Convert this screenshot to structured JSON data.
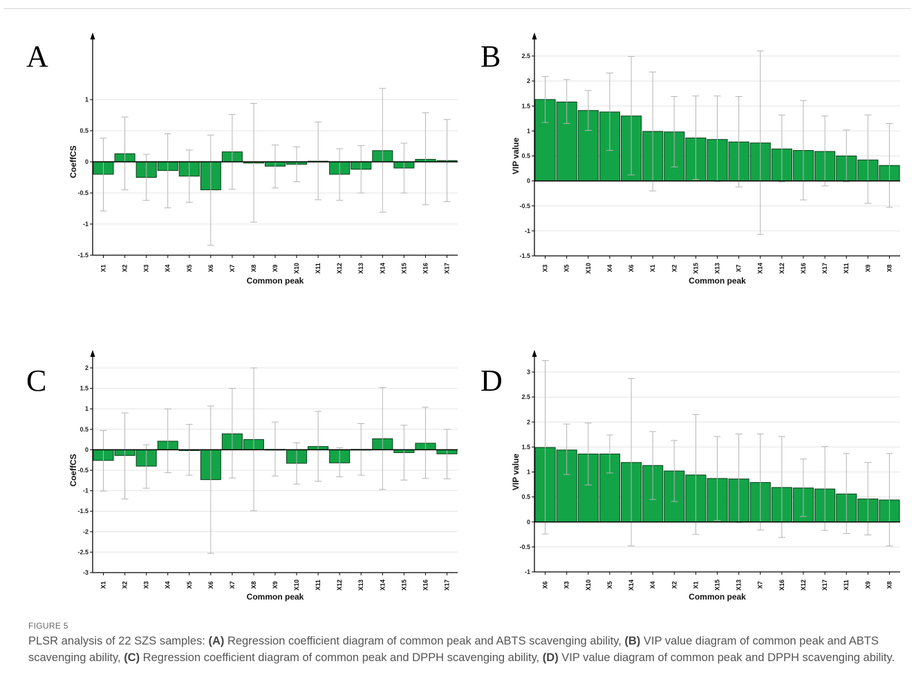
{
  "colors": {
    "bar": "#13a447",
    "bar_stroke": "#0b3d1c",
    "error": "#b4b4b4",
    "grid": "#e4e4e4",
    "axis": "#000000"
  },
  "chart_data": [
    {
      "type": "bar",
      "panel": "A",
      "xlabel": "Common peak",
      "ylabel": "CoeffCS",
      "ylim": [
        -1.5,
        1.5
      ],
      "yticks": [
        1,
        0.5,
        0,
        -0.5,
        -1,
        -1.5
      ],
      "grid": true,
      "categories": [
        "X1",
        "X2",
        "X3",
        "X4",
        "X5",
        "X6",
        "X7",
        "X8",
        "X9",
        "X10",
        "X11",
        "X12",
        "X13",
        "X14",
        "X15",
        "X16",
        "X17"
      ],
      "values": [
        -0.2,
        0.13,
        -0.25,
        -0.14,
        -0.23,
        -0.45,
        0.16,
        -0.02,
        -0.07,
        -0.04,
        0.01,
        -0.2,
        -0.12,
        0.18,
        -0.1,
        0.04,
        0.02
      ],
      "error_upper": [
        0.38,
        0.72,
        0.12,
        0.45,
        0.19,
        0.43,
        0.76,
        0.94,
        0.27,
        0.24,
        0.64,
        0.21,
        0.26,
        1.18,
        0.3,
        0.79,
        0.68
      ],
      "error_lower": [
        -0.79,
        -0.45,
        -0.62,
        -0.74,
        -0.65,
        -1.34,
        -0.44,
        -0.97,
        -0.42,
        -0.32,
        -0.61,
        -0.62,
        -0.5,
        -0.81,
        -0.5,
        -0.69,
        -0.64
      ]
    },
    {
      "type": "bar",
      "panel": "B",
      "xlabel": "Common peak",
      "ylabel": "VIP value",
      "ylim": [
        -1.5,
        2.5
      ],
      "yticks": [
        2.5,
        2,
        1.5,
        1,
        0.5,
        0,
        -0.5,
        -1,
        -1.5
      ],
      "grid": true,
      "categories": [
        "X3",
        "X5",
        "X10",
        "X4",
        "X6",
        "X1",
        "X2",
        "X15",
        "X13",
        "X7",
        "X14",
        "X12",
        "X16",
        "X17",
        "X11",
        "X9",
        "X8"
      ],
      "values": [
        1.63,
        1.58,
        1.41,
        1.38,
        1.3,
        0.99,
        0.98,
        0.86,
        0.83,
        0.78,
        0.76,
        0.64,
        0.61,
        0.59,
        0.5,
        0.42,
        0.31
      ],
      "error_upper": [
        2.09,
        2.03,
        1.81,
        2.16,
        2.49,
        2.18,
        1.69,
        1.7,
        1.7,
        1.69,
        2.6,
        1.32,
        1.61,
        1.3,
        1.02,
        1.32,
        1.15
      ],
      "error_lower": [
        1.17,
        1.15,
        1.01,
        0.61,
        0.12,
        -0.2,
        0.28,
        0.03,
        -0.01,
        -0.12,
        -1.07,
        -0.02,
        -0.38,
        -0.1,
        -0.02,
        -0.45,
        -0.53
      ]
    },
    {
      "type": "bar",
      "panel": "C",
      "xlabel": "Common peak",
      "ylabel": "CoeffCS",
      "ylim": [
        -3,
        2
      ],
      "yticks": [
        2,
        1.5,
        1,
        0.5,
        0,
        -0.5,
        -1,
        -1.5,
        -2,
        -2.5,
        -3
      ],
      "grid": true,
      "categories": [
        "X1",
        "X2",
        "X3",
        "X4",
        "X5",
        "X6",
        "X7",
        "X8",
        "X9",
        "X10",
        "X11",
        "X12",
        "X13",
        "X14",
        "X15",
        "X16",
        "X17"
      ],
      "values": [
        -0.26,
        -0.14,
        -0.4,
        0.21,
        -0.02,
        -0.73,
        0.39,
        0.25,
        0.01,
        -0.33,
        0.08,
        -0.32,
        0.01,
        0.27,
        -0.07,
        0.16,
        -0.1
      ],
      "error_upper": [
        0.47,
        0.9,
        0.12,
        1.0,
        0.62,
        1.07,
        1.5,
        2.0,
        0.68,
        0.17,
        0.94,
        0.05,
        0.64,
        1.52,
        0.6,
        1.04,
        0.5
      ],
      "error_lower": [
        -1.01,
        -1.2,
        -0.94,
        -0.56,
        -0.62,
        -2.53,
        -0.69,
        -1.49,
        -0.64,
        -0.84,
        -0.77,
        -0.66,
        -0.62,
        -0.97,
        -0.74,
        -0.7,
        -0.71
      ]
    },
    {
      "type": "bar",
      "panel": "D",
      "xlabel": "Common peak",
      "ylabel": "VIP value",
      "ylim": [
        -1,
        3
      ],
      "yticks": [
        3,
        2.5,
        2,
        1.5,
        1,
        0.5,
        0,
        -0.5,
        -1
      ],
      "grid": true,
      "categories": [
        "X6",
        "X3",
        "X10",
        "X5",
        "X14",
        "X4",
        "X2",
        "X1",
        "X15",
        "X13",
        "X7",
        "X16",
        "X12",
        "X17",
        "X11",
        "X9",
        "X8"
      ],
      "values": [
        1.49,
        1.44,
        1.36,
        1.36,
        1.19,
        1.13,
        1.02,
        0.94,
        0.87,
        0.86,
        0.79,
        0.69,
        0.68,
        0.66,
        0.56,
        0.46,
        0.44
      ],
      "error_upper": [
        3.23,
        1.96,
        1.98,
        1.74,
        2.87,
        1.81,
        1.63,
        2.15,
        1.71,
        1.76,
        1.76,
        1.71,
        1.26,
        1.51,
        1.37,
        1.19,
        1.37
      ],
      "error_lower": [
        -0.24,
        0.95,
        0.74,
        0.98,
        -0.48,
        0.45,
        0.41,
        -0.25,
        0.03,
        -0.01,
        -0.16,
        -0.31,
        0.11,
        -0.17,
        -0.23,
        -0.26,
        -0.48
      ]
    }
  ],
  "caption": {
    "figure_label": "FIGURE 5",
    "intro": "PLSR analysis of 22 SZS samples: ",
    "parts": [
      {
        "tag": "(A)",
        "text": " Regression coefficient diagram of common peak and ABTS scavenging ability, "
      },
      {
        "tag": "(B)",
        "text": " VIP value diagram of common peak and ABTS scavenging ability, "
      },
      {
        "tag": "(C)",
        "text": " Regression coefficient diagram of common peak and DPPH scavenging ability, "
      },
      {
        "tag": "(D)",
        "text": " VIP value diagram of common peak and DPPH scavenging ability."
      }
    ]
  }
}
